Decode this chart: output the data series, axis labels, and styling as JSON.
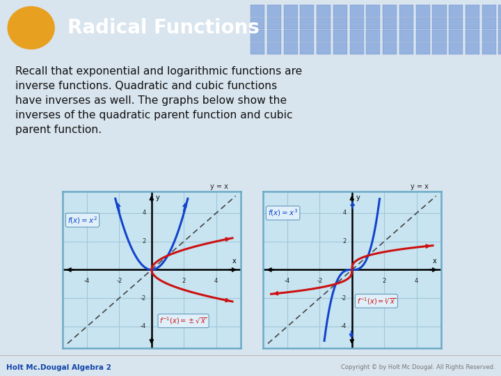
{
  "title": "Radical Functions",
  "title_color": "#FFFFFF",
  "header_bg_color": "#4472C4",
  "header_tile_color": "#5B82CC",
  "ellipse_color": "#E8A020",
  "body_bg_color": "#D8E4EE",
  "body_text": "Recall that exponential and logarithmic functions are\ninverse functions. Quadratic and cubic functions\nhave inverses as well. The graphs below show the\ninverses of the quadratic parent function and cubic\nparent function.",
  "body_text_color": "#111111",
  "footer_left": "Holt Mc.Dougal Algebra 2",
  "footer_right": "Copyright © by Holt Mc Dougal. All Rights Reserved.",
  "graph_bg": "#C8E4F0",
  "graph_border": "#6AAAC8",
  "grid_color": "#A0C8DC",
  "axis_color": "#000000",
  "dashed_color": "#444444",
  "blue_curve_color": "#1144CC",
  "red_curve_color": "#CC1111",
  "label_box_bg": "#E0F0FA",
  "label_box_border": "#6699BB",
  "label_text_color_blue": "#1144CC",
  "label_text_color_red": "#CC1111",
  "yx_label_color": "#222222"
}
